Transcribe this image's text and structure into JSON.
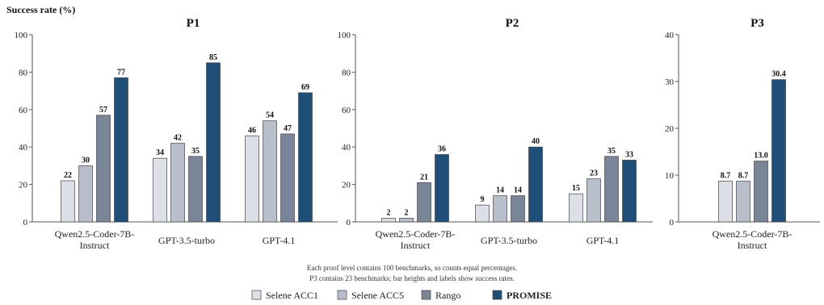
{
  "chart_data": [
    {
      "type": "bar",
      "title": "P1",
      "ylabel": "Success rate (%)",
      "ylim": [
        0,
        100
      ],
      "yticks": [
        0,
        20,
        40,
        60,
        80,
        100
      ],
      "categories": [
        "Qwen2.5-Coder-7B-Instruct",
        "GPT-3.5-turbo",
        "GPT-4.1"
      ],
      "series": [
        {
          "name": "Selene ACC1",
          "values": [
            22,
            34,
            46
          ],
          "labels": [
            "22",
            "34",
            "46"
          ]
        },
        {
          "name": "Selene ACC5",
          "values": [
            30,
            42,
            54
          ],
          "labels": [
            "30",
            "42",
            "54"
          ]
        },
        {
          "name": "Rango",
          "values": [
            57,
            35,
            47
          ],
          "labels": [
            "57",
            "35",
            "47"
          ]
        },
        {
          "name": "PROMISE",
          "values": [
            77,
            85,
            69
          ],
          "labels": [
            "77",
            "85",
            "69"
          ]
        }
      ]
    },
    {
      "type": "bar",
      "title": "P2",
      "ylim": [
        0,
        100
      ],
      "yticks": [
        0,
        20,
        40,
        60,
        80,
        100
      ],
      "categories": [
        "Qwen2.5-Coder-7B-Instruct",
        "GPT-3.5-turbo",
        "GPT-4.1"
      ],
      "series": [
        {
          "name": "Selene ACC1",
          "values": [
            2,
            9,
            15
          ],
          "labels": [
            "2",
            "9",
            "15"
          ]
        },
        {
          "name": "Selene ACC5",
          "values": [
            2,
            14,
            23
          ],
          "labels": [
            "2",
            "14",
            "23"
          ]
        },
        {
          "name": "Rango",
          "values": [
            21,
            14,
            35
          ],
          "labels": [
            "21",
            "14",
            "35"
          ]
        },
        {
          "name": "PROMISE",
          "values": [
            36,
            40,
            33
          ],
          "labels": [
            "36",
            "40",
            "33"
          ]
        }
      ]
    },
    {
      "type": "bar",
      "title": "P3",
      "ylim": [
        0,
        40
      ],
      "yticks": [
        0,
        10,
        20,
        30,
        40
      ],
      "categories": [
        "Qwen2.5-Coder-7B-Instruct"
      ],
      "series": [
        {
          "name": "Selene ACC1",
          "values": [
            8.7
          ],
          "labels": [
            "8.7"
          ]
        },
        {
          "name": "Selene ACC5",
          "values": [
            8.7
          ],
          "labels": [
            "8.7"
          ]
        },
        {
          "name": "Rango",
          "values": [
            13.0
          ],
          "labels": [
            "13.0"
          ]
        },
        {
          "name": "PROMISE",
          "values": [
            30.4
          ],
          "labels": [
            "30.4"
          ]
        }
      ]
    }
  ],
  "colors": {
    "Selene ACC1": "#dcdfe5",
    "Selene ACC5": "#b8bfcb",
    "Rango": "#7a8697",
    "PROMISE": "#1f4e79"
  },
  "notes": [
    "Each proof level contains 100 benchmarks, so counts equal percentages.",
    "P3 contains 23 benchmarks; bar heights and labels show success rates."
  ],
  "legend": [
    "Selene ACC1",
    "Selene ACC5",
    "Rango",
    "PROMISE"
  ],
  "legend_bold": [
    "PROMISE"
  ]
}
